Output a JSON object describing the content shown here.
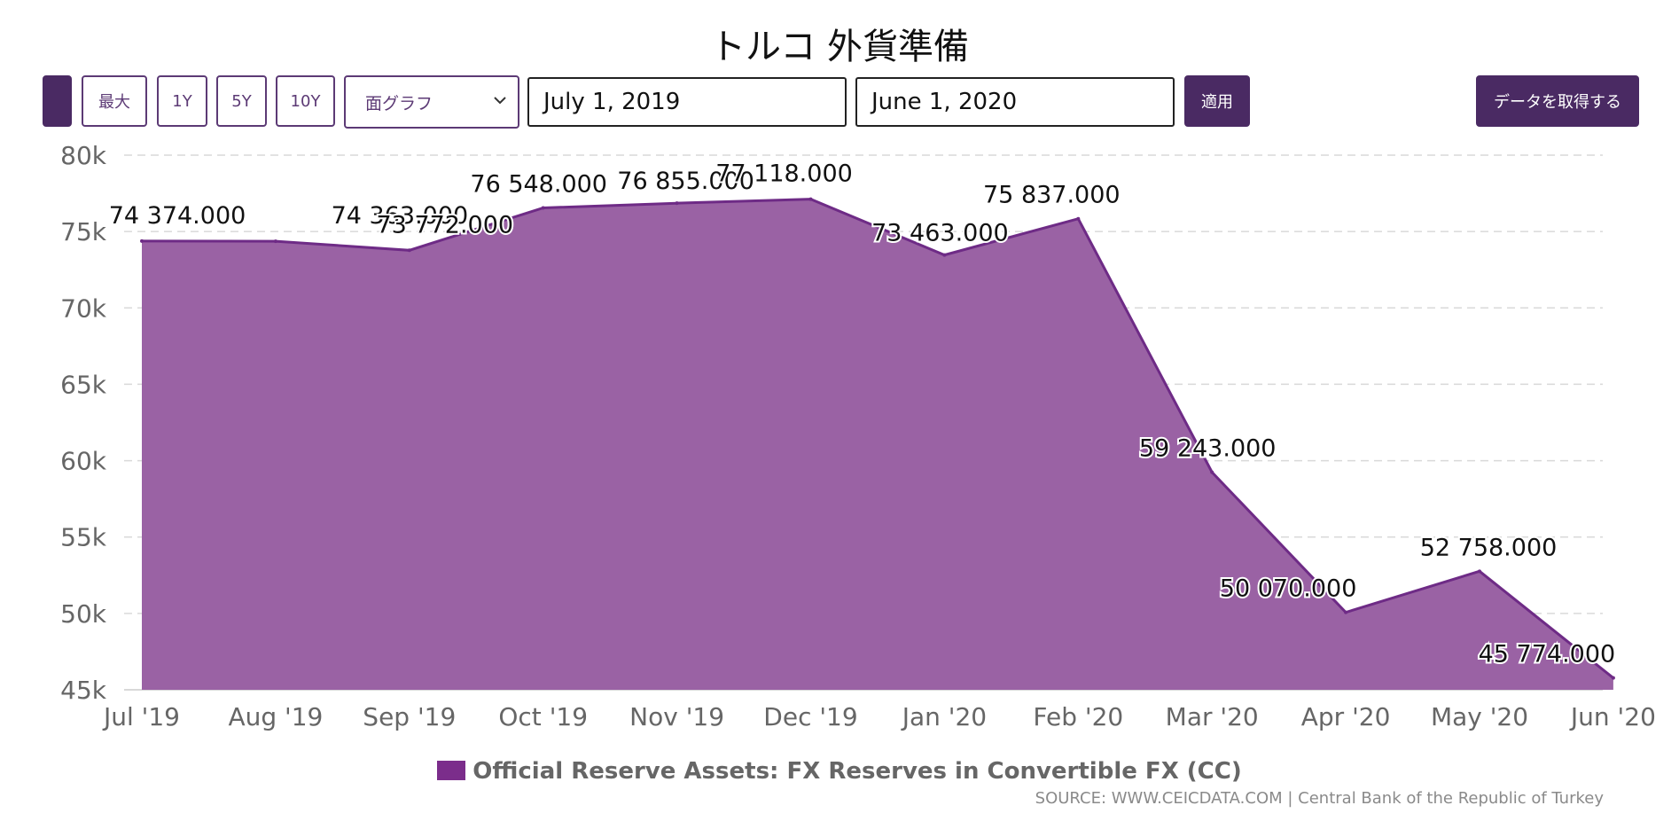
{
  "title": "トルコ 外貨準備",
  "toolbar": {
    "btn_max": "最大",
    "btn_1y": "1Y",
    "btn_5y": "5Y",
    "btn_10y": "10Y",
    "chart_type": "面グラフ",
    "start_date": "July 1, 2019",
    "end_date": "June 1, 2020",
    "apply": "適用",
    "get_data": "データを取得する"
  },
  "colors": {
    "accent": "#4a2a63",
    "area_fill": "#9a62a4",
    "area_line": "#6e2b86",
    "legend_swatch": "#7b2d8b"
  },
  "chart_data": {
    "type": "area",
    "categories": [
      "Jul '19",
      "Aug '19",
      "Sep '19",
      "Oct '19",
      "Nov '19",
      "Dec '19",
      "Jan '20",
      "Feb '20",
      "Mar '20",
      "Apr '20",
      "May '20",
      "Jun '20"
    ],
    "series": [
      {
        "name": "Official Reserve Assets: FX Reserves in Convertible FX (CC)",
        "values": [
          74374,
          74363,
          73772,
          76548,
          76855,
          77118,
          73463,
          75837,
          59243,
          50070,
          52758,
          45774
        ],
        "labels": [
          "74 374.000",
          "74 363.000",
          "73 772.000",
          "76 548.000",
          "76 855.000",
          "77 118.000",
          "73 463.000",
          "75 837.000",
          "59 243.000",
          "50 070.000",
          "52 758.000",
          "45 774.000"
        ]
      }
    ],
    "ylim": [
      45000,
      80000
    ],
    "yticks": [
      45000,
      50000,
      55000,
      60000,
      65000,
      70000,
      75000,
      80000
    ],
    "ytick_labels": [
      "45k",
      "50k",
      "55k",
      "60k",
      "65k",
      "70k",
      "75k",
      "80k"
    ],
    "grid": true,
    "legend_position": "bottom"
  },
  "source": "SOURCE: WWW.CEICDATA.COM | Central Bank of the Republic of Turkey"
}
